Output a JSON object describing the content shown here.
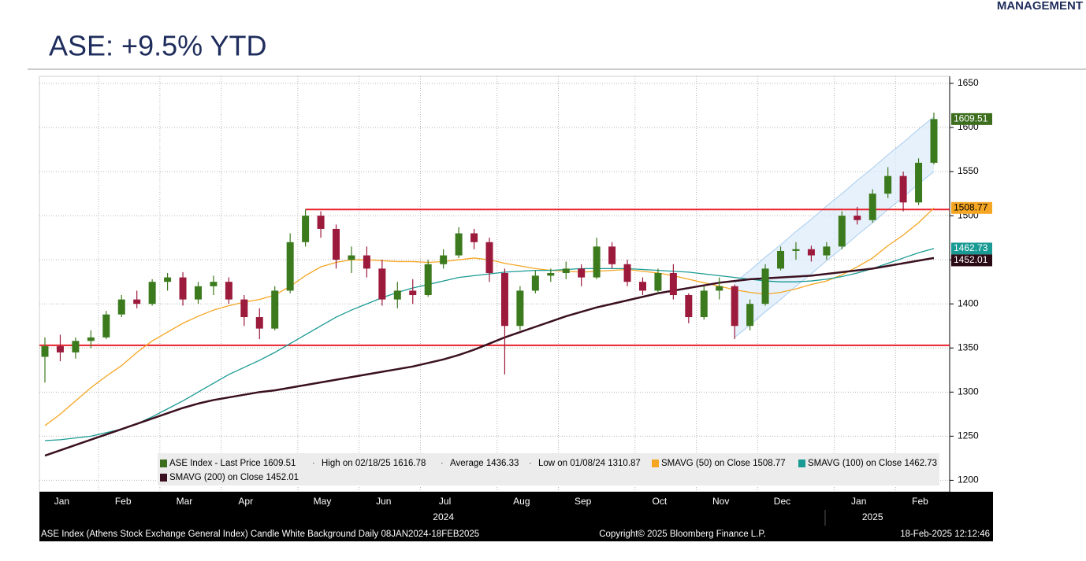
{
  "header": {
    "brand": "MANAGEMENT",
    "title": "ASE: +9.5% YTD"
  },
  "chart_data": {
    "type": "candlestick",
    "categories": [
      "Jan",
      null,
      null,
      null,
      "Feb",
      null,
      null,
      null,
      "Mar",
      null,
      null,
      null,
      "Apr",
      null,
      null,
      null,
      null,
      "May",
      null,
      null,
      null,
      "Jun",
      null,
      null,
      null,
      "Jul",
      null,
      null,
      null,
      null,
      "Aug",
      null,
      null,
      null,
      "Sep",
      null,
      null,
      null,
      null,
      "Oct",
      null,
      null,
      null,
      "Nov",
      null,
      null,
      null,
      "Dec",
      null,
      null,
      null,
      null,
      "Jan",
      null,
      null,
      null,
      "Feb",
      null,
      null
    ],
    "year_labels": [
      "2024",
      "2025"
    ],
    "candles": [
      [
        1340,
        1362,
        1310.87,
        1352
      ],
      [
        1352,
        1365,
        1335,
        1345
      ],
      [
        1345,
        1362,
        1338,
        1358
      ],
      [
        1358,
        1370,
        1350,
        1362
      ],
      [
        1362,
        1392,
        1360,
        1388
      ],
      [
        1388,
        1410,
        1385,
        1405
      ],
      [
        1405,
        1415,
        1395,
        1400
      ],
      [
        1400,
        1428,
        1398,
        1425
      ],
      [
        1425,
        1435,
        1415,
        1430
      ],
      [
        1430,
        1436,
        1398,
        1405
      ],
      [
        1405,
        1425,
        1400,
        1420
      ],
      [
        1420,
        1432,
        1410,
        1425
      ],
      [
        1425,
        1430,
        1400,
        1405
      ],
      [
        1405,
        1410,
        1375,
        1385
      ],
      [
        1385,
        1395,
        1360,
        1372
      ],
      [
        1372,
        1420,
        1370,
        1415
      ],
      [
        1415,
        1480,
        1412,
        1470
      ],
      [
        1470,
        1507,
        1465,
        1500
      ],
      [
        1500,
        1505,
        1475,
        1485
      ],
      [
        1485,
        1490,
        1440,
        1450
      ],
      [
        1450,
        1465,
        1435,
        1455
      ],
      [
        1455,
        1465,
        1430,
        1440
      ],
      [
        1440,
        1450,
        1398,
        1405
      ],
      [
        1405,
        1425,
        1395,
        1415
      ],
      [
        1415,
        1428,
        1400,
        1410
      ],
      [
        1410,
        1450,
        1408,
        1445
      ],
      [
        1445,
        1462,
        1440,
        1455
      ],
      [
        1455,
        1487,
        1452,
        1480
      ],
      [
        1480,
        1485,
        1462,
        1470
      ],
      [
        1470,
        1475,
        1425,
        1435
      ],
      [
        1435,
        1440,
        1320,
        1375
      ],
      [
        1375,
        1420,
        1370,
        1415
      ],
      [
        1415,
        1438,
        1412,
        1432
      ],
      [
        1432,
        1440,
        1425,
        1435
      ],
      [
        1435,
        1448,
        1428,
        1440
      ],
      [
        1440,
        1445,
        1420,
        1430
      ],
      [
        1430,
        1475,
        1428,
        1465
      ],
      [
        1465,
        1470,
        1440,
        1445
      ],
      [
        1445,
        1450,
        1420,
        1425
      ],
      [
        1425,
        1430,
        1410,
        1415
      ],
      [
        1415,
        1440,
        1412,
        1435
      ],
      [
        1435,
        1445,
        1405,
        1410
      ],
      [
        1410,
        1412,
        1378,
        1385
      ],
      [
        1385,
        1420,
        1382,
        1415
      ],
      [
        1415,
        1430,
        1405,
        1420
      ],
      [
        1420,
        1422,
        1360,
        1375
      ],
      [
        1375,
        1405,
        1370,
        1400
      ],
      [
        1400,
        1445,
        1398,
        1440
      ],
      [
        1440,
        1465,
        1438,
        1460
      ],
      [
        1460,
        1470,
        1450,
        1462
      ],
      [
        1462,
        1466,
        1448,
        1455
      ],
      [
        1455,
        1470,
        1450,
        1465
      ],
      [
        1465,
        1505,
        1462,
        1500
      ],
      [
        1500,
        1510,
        1490,
        1495
      ],
      [
        1495,
        1530,
        1492,
        1525
      ],
      [
        1525,
        1555,
        1520,
        1545
      ],
      [
        1545,
        1550,
        1505,
        1515
      ],
      [
        1515,
        1565,
        1512,
        1560
      ],
      [
        1560,
        1616.78,
        1558,
        1609.51
      ]
    ],
    "up_color": "#3c7a1e",
    "down_color": "#9c1a3c",
    "series": [
      {
        "name": "SMAVG (50)",
        "color": "#f5a623",
        "values": [
          1262,
          1275,
          1290,
          1305,
          1318,
          1330,
          1345,
          1358,
          1368,
          1378,
          1386,
          1393,
          1398,
          1402,
          1405,
          1410,
          1420,
          1432,
          1442,
          1447,
          1450,
          1450,
          1449,
          1448,
          1448,
          1447,
          1448,
          1450,
          1452,
          1450,
          1446,
          1443,
          1440,
          1438,
          1437,
          1436,
          1437,
          1438,
          1439,
          1437,
          1435,
          1432,
          1428,
          1424,
          1420,
          1416,
          1413,
          1411,
          1413,
          1417,
          1422,
          1426,
          1433,
          1442,
          1452,
          1466,
          1478,
          1492,
          1508.77
        ]
      },
      {
        "name": "SMAVG (100)",
        "color": "#1a9a94",
        "values": [
          1245,
          1246,
          1248,
          1250,
          1254,
          1258,
          1264,
          1272,
          1281,
          1290,
          1300,
          1310,
          1320,
          1328,
          1336,
          1345,
          1355,
          1365,
          1375,
          1385,
          1393,
          1400,
          1407,
          1413,
          1418,
          1422,
          1426,
          1430,
          1432,
          1434,
          1436,
          1437,
          1438,
          1438,
          1439,
          1440,
          1440,
          1440,
          1440,
          1439,
          1438,
          1437,
          1436,
          1434,
          1432,
          1430,
          1428,
          1426,
          1425,
          1425,
          1426,
          1428,
          1431,
          1435,
          1440,
          1446,
          1452,
          1458,
          1462.73
        ]
      },
      {
        "name": "SMAVG (200)",
        "color": "#3a1020",
        "values": [
          1228,
          1234,
          1240,
          1246,
          1252,
          1258,
          1264,
          1270,
          1276,
          1282,
          1287,
          1291,
          1294,
          1297,
          1300,
          1302,
          1305,
          1308,
          1311,
          1314,
          1317,
          1320,
          1323,
          1326,
          1329,
          1333,
          1337,
          1342,
          1348,
          1355,
          1362,
          1368,
          1374,
          1380,
          1386,
          1391,
          1396,
          1400,
          1404,
          1408,
          1412,
          1415,
          1418,
          1421,
          1424,
          1426,
          1428,
          1429,
          1430,
          1431,
          1432,
          1434,
          1436,
          1438,
          1440,
          1443,
          1446,
          1449,
          1452.01
        ]
      }
    ],
    "channel": {
      "color": "#dcebfa",
      "lower": [
        null,
        null,
        null,
        null,
        null,
        null,
        null,
        null,
        null,
        null,
        null,
        null,
        null,
        null,
        null,
        null,
        null,
        null,
        null,
        null,
        null,
        null,
        null,
        null,
        null,
        null,
        null,
        null,
        null,
        null,
        null,
        null,
        null,
        null,
        null,
        null,
        null,
        null,
        null,
        null,
        null,
        null,
        null,
        null,
        null,
        1362,
        1376,
        1391,
        1405,
        1420,
        1434,
        1449,
        1463,
        1478,
        1492,
        1507,
        1521,
        1536,
        1550
      ],
      "upper": [
        null,
        null,
        null,
        null,
        null,
        null,
        null,
        null,
        null,
        null,
        null,
        null,
        null,
        null,
        null,
        null,
        null,
        null,
        null,
        null,
        null,
        null,
        null,
        null,
        null,
        null,
        null,
        null,
        null,
        null,
        null,
        null,
        null,
        null,
        null,
        null,
        null,
        null,
        null,
        null,
        null,
        null,
        null,
        null,
        null,
        1424,
        1438,
        1453,
        1467,
        1482,
        1496,
        1511,
        1525,
        1540,
        1554,
        1569,
        1583,
        1598,
        1612
      ]
    },
    "hlines": [
      {
        "value": 1507,
        "color": "#e8212b"
      },
      {
        "value": 1353,
        "color": "#e8212b"
      }
    ],
    "ylim": [
      1187,
      1658
    ],
    "yticks": [
      1200,
      1250,
      1300,
      1350,
      1400,
      1450,
      1500,
      1550,
      1600,
      1650
    ],
    "grid": true,
    "value_tags": [
      {
        "value": 1609.51,
        "color": "#3c6e1e"
      },
      {
        "value": 1508.77,
        "color": "#f5a623"
      },
      {
        "value": 1462.73,
        "color": "#1a9a94"
      },
      {
        "value": 1452.01,
        "color": "#2a0a14"
      }
    ],
    "legend": [
      {
        "text": "ASE Index - Last Price 1609.51",
        "color": "#3c6e1e"
      },
      {
        "text": "High on 02/18/25 1616.78",
        "color": null
      },
      {
        "text": "Average 1436.33",
        "color": null
      },
      {
        "text": "Low on 01/08/24 1310.87",
        "color": null
      },
      {
        "text": "SMAVG (50) on Close 1508.77",
        "color": "#f5a623"
      },
      {
        "text": "SMAVG (100) on Close 1462.73",
        "color": "#1a9a94"
      },
      {
        "text": "SMAVG (200) on Close 1452.01",
        "color": "#3a1020"
      }
    ],
    "footer": [
      "ASE Index (Athens Stock Exchange General Index) Candle White Background  Daily 08JAN2024-18FEB2025",
      "Copyright© 2025 Bloomberg Finance L.P.",
      "18-Feb-2025 12:12:46"
    ]
  }
}
